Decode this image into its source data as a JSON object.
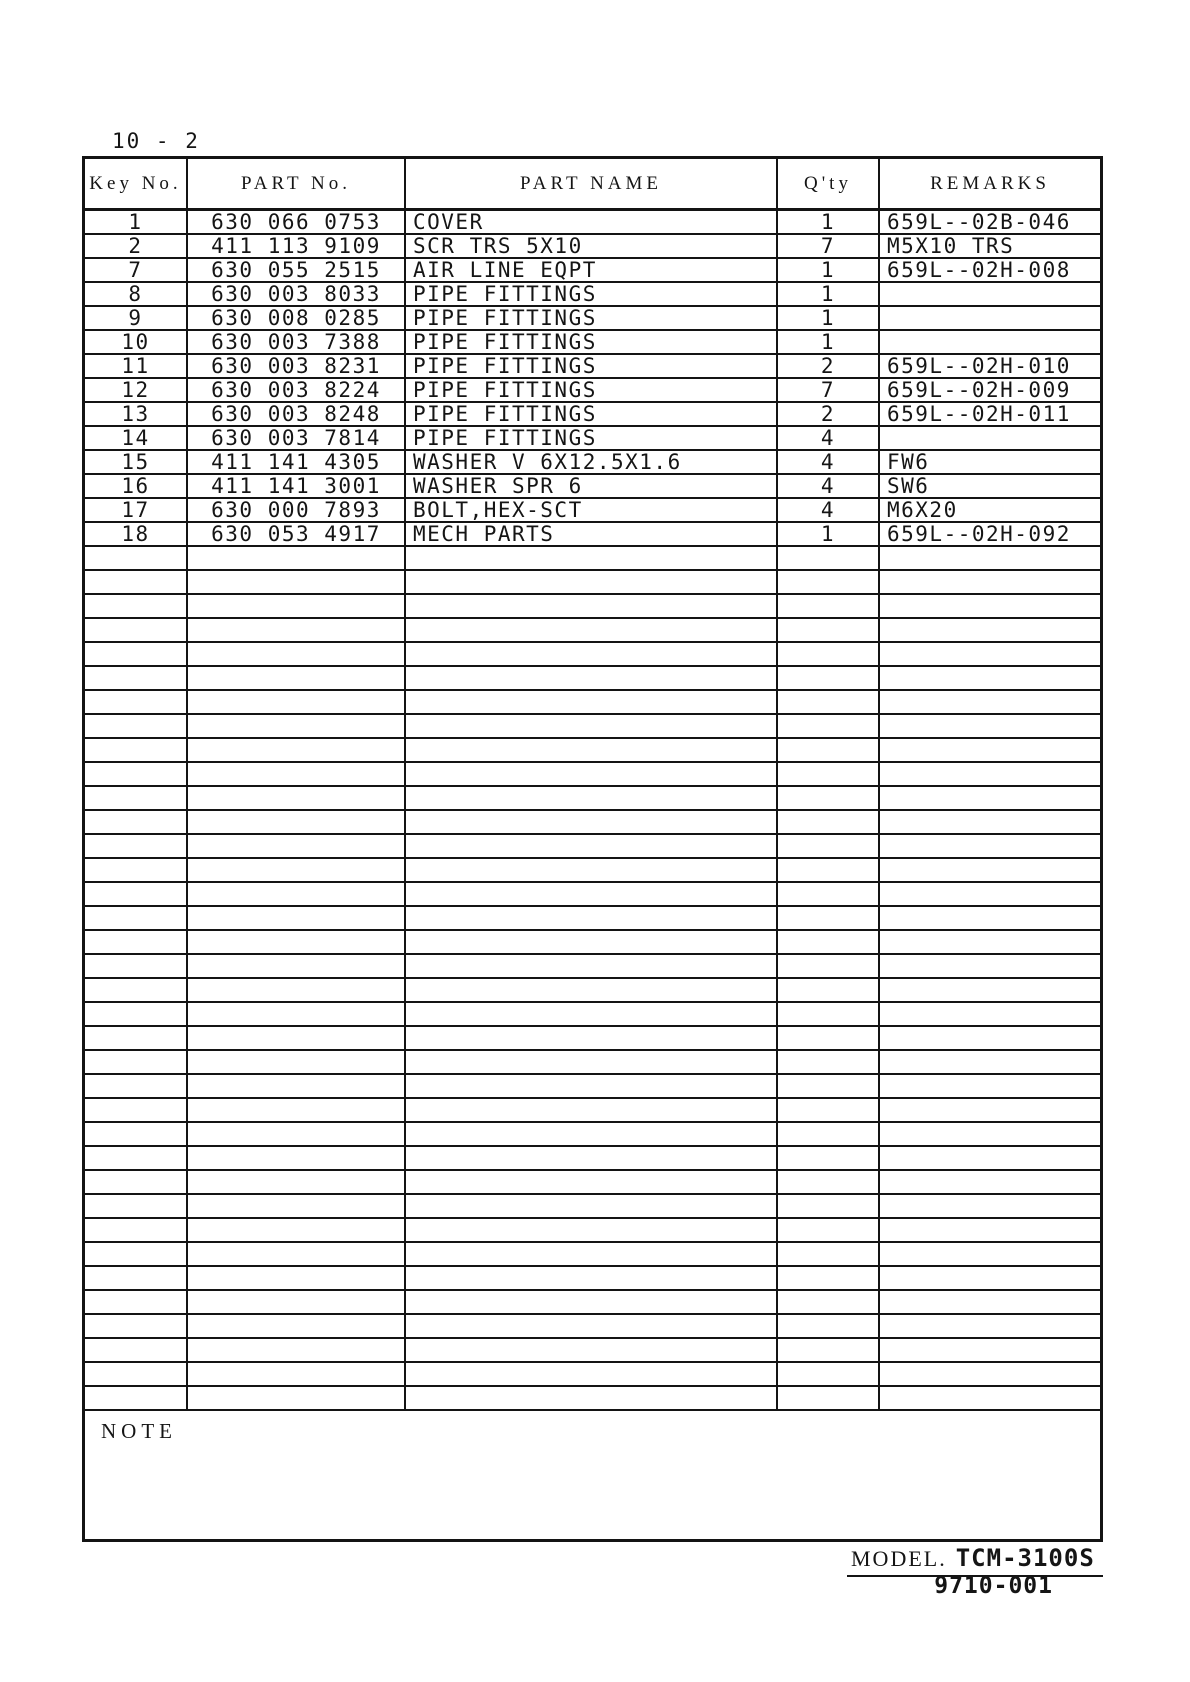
{
  "page": {
    "page_number": "10 - 2",
    "note_label": "NOTE",
    "model_label": "MODEL.",
    "model_value": "TCM-3100S",
    "doc_number": "9710-001"
  },
  "table": {
    "headers": [
      "Key No.",
      "PART No.",
      "PART NAME",
      "Q'ty",
      "REMARKS"
    ],
    "rows": [
      {
        "key_no": "1",
        "part_no": "630 066 0753",
        "part_name": "COVER",
        "qty": "1",
        "remarks": "659L--02B-046"
      },
      {
        "key_no": "2",
        "part_no": "411 113 9109",
        "part_name": "SCR TRS 5X10",
        "qty": "7",
        "remarks": "M5X10 TRS"
      },
      {
        "key_no": "7",
        "part_no": "630 055 2515",
        "part_name": "AIR LINE EQPT",
        "qty": "1",
        "remarks": "659L--02H-008"
      },
      {
        "key_no": "8",
        "part_no": "630 003 8033",
        "part_name": "PIPE FITTINGS",
        "qty": "1",
        "remarks": ""
      },
      {
        "key_no": "9",
        "part_no": "630 008 0285",
        "part_name": "PIPE FITTINGS",
        "qty": "1",
        "remarks": ""
      },
      {
        "key_no": "10",
        "part_no": "630 003 7388",
        "part_name": "PIPE FITTINGS",
        "qty": "1",
        "remarks": ""
      },
      {
        "key_no": "11",
        "part_no": "630 003 8231",
        "part_name": "PIPE FITTINGS",
        "qty": "2",
        "remarks": "659L--02H-010"
      },
      {
        "key_no": "12",
        "part_no": "630 003 8224",
        "part_name": "PIPE FITTINGS",
        "qty": "7",
        "remarks": "659L--02H-009"
      },
      {
        "key_no": "13",
        "part_no": "630 003 8248",
        "part_name": "PIPE FITTINGS",
        "qty": "2",
        "remarks": "659L--02H-011"
      },
      {
        "key_no": "14",
        "part_no": "630 003 7814",
        "part_name": "PIPE FITTINGS",
        "qty": "4",
        "remarks": ""
      },
      {
        "key_no": "15",
        "part_no": "411 141 4305",
        "part_name": "WASHER V 6X12.5X1.6",
        "qty": "4",
        "remarks": "FW6"
      },
      {
        "key_no": "16",
        "part_no": "411 141 3001",
        "part_name": "WASHER SPR 6",
        "qty": "4",
        "remarks": "SW6"
      },
      {
        "key_no": "17",
        "part_no": "630 000 7893",
        "part_name": "BOLT,HEX-SCT",
        "qty": "4",
        "remarks": "M6X20"
      },
      {
        "key_no": "18",
        "part_no": "630 053 4917",
        "part_name": "MECH PARTS",
        "qty": "1",
        "remarks": "659L--02H-092"
      }
    ],
    "empty_row_count": 36
  }
}
